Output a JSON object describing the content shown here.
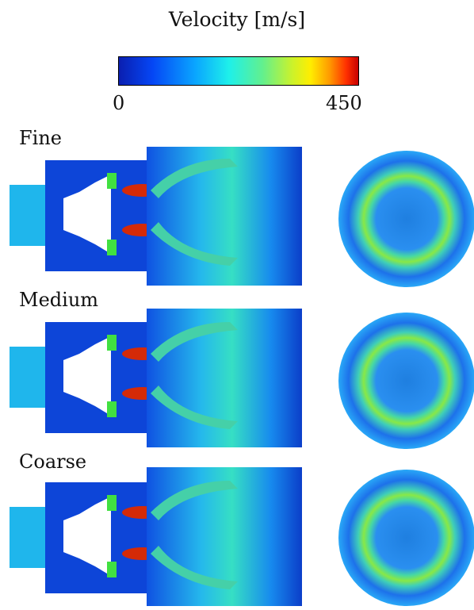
{
  "colorbar": {
    "title": "Velocity [m/s]",
    "min_label": "0",
    "max_label": "450",
    "colors": [
      "#0a1fb0",
      "#0546f5",
      "#0aa6ff",
      "#1ef0ea",
      "#62f08e",
      "#c8f22e",
      "#ffee00",
      "#ff9a00",
      "#ff3000",
      "#c80000"
    ]
  },
  "panels": [
    {
      "label": "Fine"
    },
    {
      "label": "Medium"
    },
    {
      "label": "Coarse"
    }
  ]
}
